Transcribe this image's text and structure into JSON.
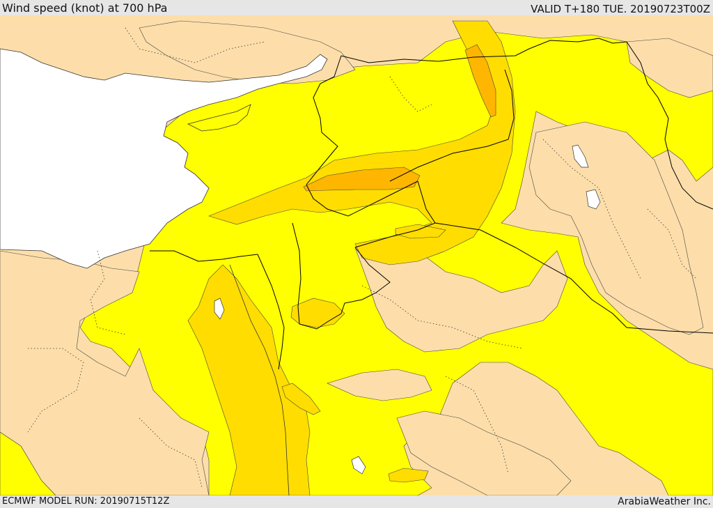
{
  "header": {
    "title": "Wind speed (knot) at 700 hPa",
    "valid": "VALID T+180 TUE. 20190723T00Z"
  },
  "footer": {
    "model_run": "ECMWF MODEL RUN: 20190715T12Z",
    "credit": "ArabiaWeather Inc."
  },
  "colors": {
    "land_low": "#fddeaa",
    "band_yellow": "#ffff00",
    "band_gold": "#ffdd00",
    "band_orange": "#ffb600",
    "sea": "#ffffff",
    "border": "#000000"
  }
}
